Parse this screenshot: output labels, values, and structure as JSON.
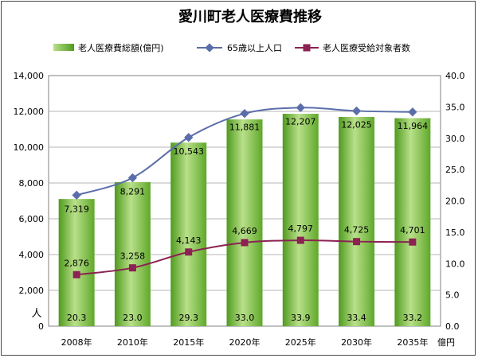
{
  "chart_data": {
    "type": "bar",
    "title": "愛川町老人医療費推移",
    "categories": [
      "2008年",
      "2010年",
      "2015年",
      "2020年",
      "2025年",
      "2030年",
      "2035年"
    ],
    "series": [
      {
        "name": "老人医療費総額(億円)",
        "type": "bar",
        "axis": "right",
        "values": [
          20.3,
          23.0,
          29.3,
          33.0,
          33.9,
          33.4,
          33.2
        ],
        "labels": [
          "20.3",
          "23.0",
          "29.3",
          "33.0",
          "33.9",
          "33.4",
          "33.2"
        ]
      },
      {
        "name": "65歳以上人口",
        "type": "line",
        "axis": "left",
        "values": [
          7319,
          8291,
          10543,
          11881,
          12207,
          12025,
          11964
        ],
        "labels": [
          "7,319",
          "8,291",
          "10,543",
          "11,881",
          "12,207",
          "12,025",
          "11,964"
        ]
      },
      {
        "name": "老人医療受給対象者数",
        "type": "line",
        "axis": "left",
        "values": [
          2876,
          3258,
          4143,
          4669,
          4797,
          4725,
          4701
        ],
        "labels": [
          "2,876",
          "3,258",
          "4,143",
          "4,669",
          "4,797",
          "4,725",
          "4,701"
        ]
      }
    ],
    "y_left": {
      "min": 0,
      "max": 14000,
      "step": 2000,
      "ticks": [
        "0",
        "2,000",
        "4,000",
        "6,000",
        "8,000",
        "10,000",
        "12,000",
        "14,000"
      ],
      "unit": "人"
    },
    "y_right": {
      "min": 0,
      "max": 40,
      "step": 5,
      "ticks": [
        "0.0",
        "5.0",
        "10.0",
        "15.0",
        "20.0",
        "25.0",
        "30.0",
        "35.0",
        "40.0"
      ],
      "unit": "億円"
    },
    "legend_position": "top",
    "colors": {
      "bar_light": "#b9e08a",
      "bar_dark": "#4f9a1e",
      "line1": "#5b6ea9",
      "line2": "#8b2252",
      "grid": "#b5b5b5"
    }
  }
}
